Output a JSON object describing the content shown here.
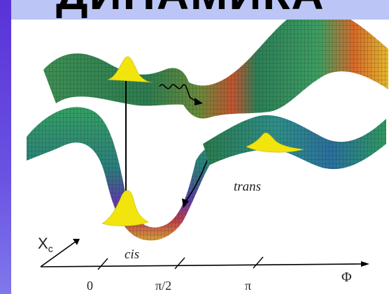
{
  "slide": {
    "title": "ДИНАМИКА"
  },
  "figure": {
    "axis_symbol": "Φ",
    "depth_axis_label": "X",
    "depth_axis_subscript": "c",
    "ticks": [
      "0",
      "π/2",
      "π"
    ],
    "states": {
      "cis": "cis",
      "trans": "trans"
    }
  },
  "colors": {
    "left_bar": "#5a32d8",
    "slide_background": "#b6bff3",
    "surface_green": "#2f8a55",
    "surface_red": "#d63a3a",
    "surface_yellow": "#e6c23a",
    "wavepacket": "#f2e40d"
  }
}
